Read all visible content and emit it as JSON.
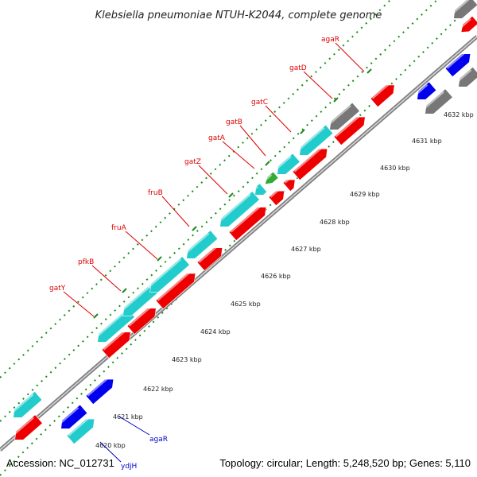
{
  "title": "Klebsiella pneumoniae NTUH-K2044, complete genome",
  "footer": {
    "accession": "Accession: NC_012731",
    "summary": "Topology: circular; Length: 5,248,520 bp; Genes: 5,110"
  },
  "colors": {
    "backbone": "#808080",
    "tick_line": "#1a8a1a",
    "label_red": "#dd0000",
    "label_blue": "#0000cc",
    "feature_red": "#ee0000",
    "feature_cyan": "#22cccc",
    "feature_blue": "#0000ee",
    "feature_green": "#33aa33",
    "feature_gray": "#777777"
  },
  "ticks": [
    "4620 kbp",
    "4621 kbp",
    "4622 kbp",
    "4623 kbp",
    "4624 kbp",
    "4625 kbp",
    "4626 kbp",
    "4627 kbp",
    "4628 kbp",
    "4629 kbp",
    "4630 kbp",
    "4631 kbp",
    "4632 kbp"
  ],
  "gene_labels_upper": [
    "gatY",
    "pfkB",
    "fruA",
    "fruB",
    "gatZ",
    "gatA",
    "gatB",
    "gatC",
    "gatD",
    "agaR"
  ],
  "gene_labels_lower": [
    "ydjH",
    "agaR"
  ]
}
